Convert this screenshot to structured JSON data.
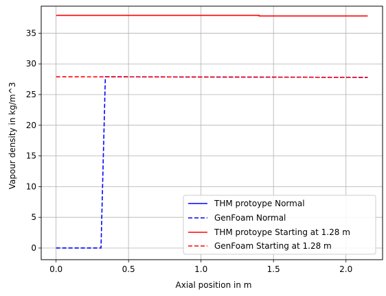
{
  "chart_data": {
    "type": "line",
    "title": "",
    "xlabel": "Axial position in m",
    "ylabel": "Vapour density in kg/m^3",
    "xlim": [
      -0.1025,
      2.2525
    ],
    "ylim": [
      -1.9,
      39.4
    ],
    "xticks": [
      0.0,
      0.5,
      1.0,
      1.5,
      2.0
    ],
    "xtick_labels": [
      "0.0",
      "0.5",
      "1.0",
      "1.5",
      "2.0"
    ],
    "yticks": [
      0,
      5,
      10,
      15,
      20,
      25,
      30,
      35
    ],
    "ytick_labels": [
      "0",
      "5",
      "10",
      "15",
      "20",
      "25",
      "30",
      "35"
    ],
    "grid": true,
    "legend_position": "lower-right",
    "series": [
      {
        "name": "THM protoype Normal",
        "color": "#0000ff",
        "dash": "solid",
        "x": [],
        "y": []
      },
      {
        "name": "GenFoam Normal",
        "color": "#0000ff",
        "dash": "dashed",
        "x": [
          0.0,
          0.31,
          0.34,
          2.15
        ],
        "y": [
          0.0,
          0.0,
          27.9,
          27.8
        ]
      },
      {
        "name": "THM protoype Starting at 1.28 m",
        "color": "#ff0000",
        "dash": "solid",
        "x": [
          0.0,
          1.4,
          1.4,
          2.15
        ],
        "y": [
          37.9,
          37.9,
          37.8,
          37.8
        ]
      },
      {
        "name": "GenFoam Starting at 1.28 m",
        "color": "#ff0000",
        "dash": "dashed",
        "x": [
          0.0,
          2.15
        ],
        "y": [
          27.9,
          27.8
        ]
      }
    ]
  }
}
